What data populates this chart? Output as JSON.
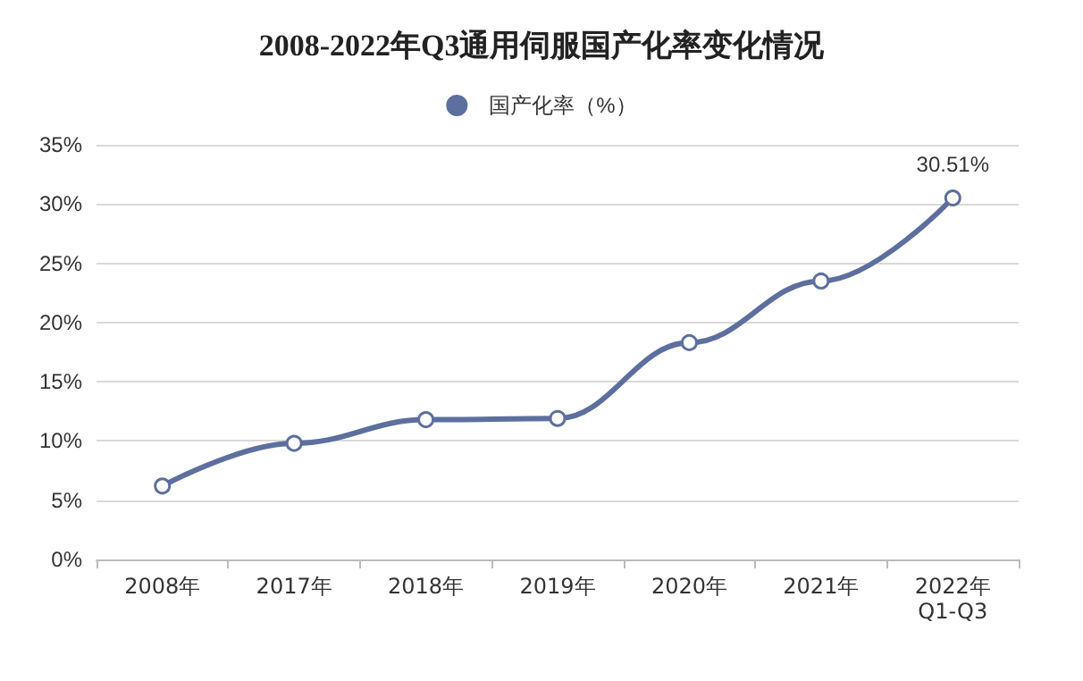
{
  "chart_data": {
    "type": "line",
    "title": "2008-2022年Q3通用伺服国产化率变化情况",
    "categories": [
      "2008年",
      "2017年",
      "2018年",
      "2019年",
      "2020年",
      "2021年",
      "2022年\nQ1-Q3"
    ],
    "series": [
      {
        "name": "国产化率（%）",
        "color": "#5d6f9e",
        "values": [
          6.2,
          9.8,
          11.8,
          11.9,
          18.3,
          23.5,
          30.51
        ],
        "value_labels": [
          null,
          null,
          null,
          null,
          null,
          null,
          "30.51%"
        ]
      }
    ],
    "ylim": [
      0,
      35
    ],
    "yticks": [
      {
        "value": 0,
        "label": "0%"
      },
      {
        "value": 5,
        "label": "5%"
      },
      {
        "value": 10,
        "label": "10%"
      },
      {
        "value": 15,
        "label": "15%"
      },
      {
        "value": 20,
        "label": "20%"
      },
      {
        "value": 25,
        "label": "25%"
      },
      {
        "value": 30,
        "label": "30%"
      },
      {
        "value": 35,
        "label": "35%"
      }
    ],
    "grid": "y",
    "legend": "top",
    "marker": "circle",
    "line_style": "solid"
  }
}
